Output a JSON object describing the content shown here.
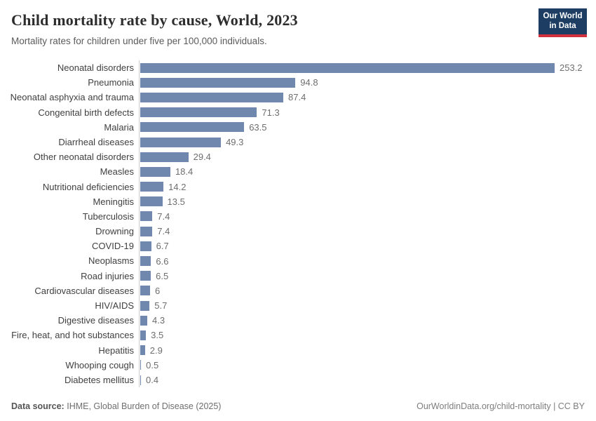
{
  "header": {
    "title": "Child mortality rate by cause, World, 2023",
    "subtitle": "Mortality rates for children under five per 100,000 individuals."
  },
  "logo": {
    "line1": "Our World",
    "line2": "in Data",
    "bg_color": "#1d3d63",
    "stripe_color": "#d0313d"
  },
  "chart_data": {
    "type": "bar",
    "orientation": "horizontal",
    "title": "Child mortality rate by cause, World, 2023",
    "xlabel": "",
    "ylabel": "",
    "xlim": [
      0,
      253.2
    ],
    "grid": false,
    "legend": "none",
    "bar_color": "#7088ae",
    "axis_color": "#cccccc",
    "categories": [
      "Neonatal disorders",
      "Pneumonia",
      "Neonatal asphyxia and trauma",
      "Congenital birth defects",
      "Malaria",
      "Diarrheal diseases",
      "Other neonatal disorders",
      "Measles",
      "Nutritional deficiencies",
      "Meningitis",
      "Tuberculosis",
      "Drowning",
      "COVID-19",
      "Neoplasms",
      "Road injuries",
      "Cardiovascular diseases",
      "HIV/AIDS",
      "Digestive diseases",
      "Fire, heat, and hot substances",
      "Hepatitis",
      "Whooping cough",
      "Diabetes mellitus"
    ],
    "values": [
      253.2,
      94.8,
      87.4,
      71.3,
      63.5,
      49.3,
      29.4,
      18.4,
      14.2,
      13.5,
      7.4,
      7.4,
      6.7,
      6.6,
      6.5,
      6,
      5.7,
      4.3,
      3.5,
      2.9,
      0.5,
      0.4
    ],
    "value_labels": [
      "253.2",
      "94.8",
      "87.4",
      "71.3",
      "63.5",
      "49.3",
      "29.4",
      "18.4",
      "14.2",
      "13.5",
      "7.4",
      "7.4",
      "6.7",
      "6.6",
      "6.5",
      "6",
      "5.7",
      "4.3",
      "3.5",
      "2.9",
      "0.5",
      "0.4"
    ]
  },
  "footer": {
    "datasource_label": "Data source:",
    "datasource_value": "IHME, Global Burden of Disease (2025)",
    "attribution": "OurWorldinData.org/child-mortality | CC BY"
  }
}
